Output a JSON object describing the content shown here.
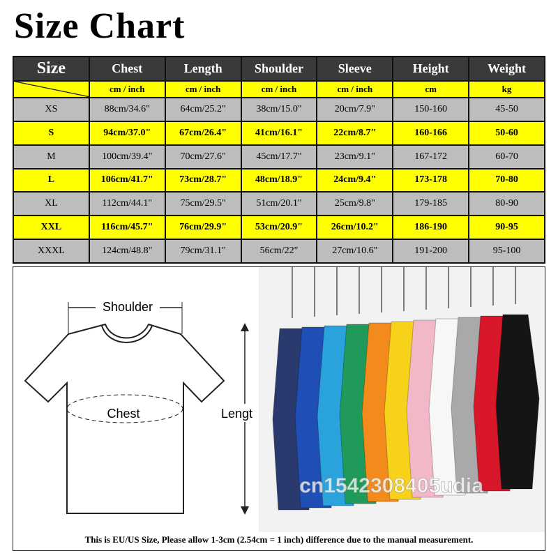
{
  "title": "Size Chart",
  "table": {
    "header": [
      "Size",
      "Chest",
      "Length",
      "Shoulder",
      "Sleeve",
      "Height",
      "Weight"
    ],
    "units": [
      "cm / inch",
      "cm / inch",
      "cm / inch",
      "cm / inch",
      "cm",
      "kg"
    ],
    "rows": [
      [
        "XS",
        "88cm/34.6\"",
        "64cm/25.2\"",
        "38cm/15.0\"",
        "20cm/7.9\"",
        "150-160",
        "45-50"
      ],
      [
        "S",
        "94cm/37.0\"",
        "67cm/26.4\"",
        "41cm/16.1\"",
        "22cm/8.7\"",
        "160-166",
        "50-60"
      ],
      [
        "M",
        "100cm/39.4\"",
        "70cm/27.6\"",
        "45cm/17.7\"",
        "23cm/9.1\"",
        "167-172",
        "60-70"
      ],
      [
        "L",
        "106cm/41.7\"",
        "73cm/28.7\"",
        "48cm/18.9\"",
        "24cm/9.4\"",
        "173-178",
        "70-80"
      ],
      [
        "XL",
        "112cm/44.1\"",
        "75cm/29.5\"",
        "51cm/20.1\"",
        "25cm/9.8\"",
        "179-185",
        "80-90"
      ],
      [
        "XXL",
        "116cm/45.7\"",
        "76cm/29.9\"",
        "53cm/20.9\"",
        "26cm/10.2\"",
        "186-190",
        "90-95"
      ],
      [
        "XXXL",
        "124cm/48.8\"",
        "79cm/31.1\"",
        "56cm/22\"",
        "27cm/10.6\"",
        "191-200",
        "95-100"
      ]
    ]
  },
  "diagram": {
    "shoulder": "Shoulder",
    "chest": "Chest",
    "length": "Lengt"
  },
  "watermark": "cn1542308405udia",
  "footnote": "This is EU/US Size, Please allow 1-3cm (2.54cm = 1 inch) difference due to the manual measurement."
}
